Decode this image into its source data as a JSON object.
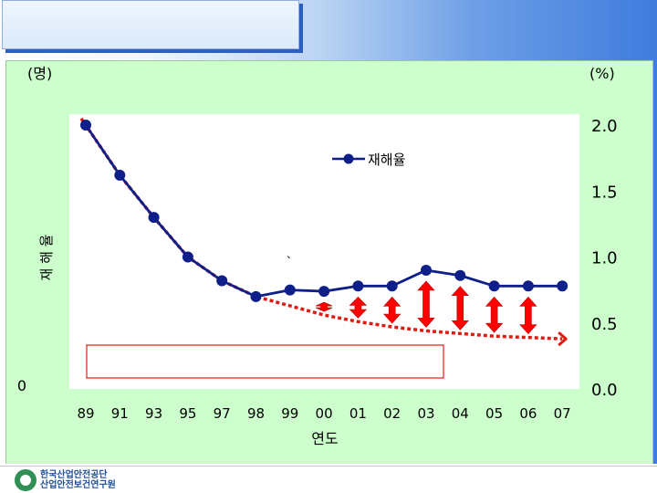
{
  "slide": {
    "title": "",
    "logo_text_line1": "한국산업안전공단",
    "logo_text_line2": "산업안전보건연구원"
  },
  "colors": {
    "series_line": "#0e1f8a",
    "trend": "#e21b12",
    "arrow": "#ff0000",
    "panel_bg": "#ccffcc",
    "plot_bg": "#ffffff"
  },
  "chart_data": {
    "type": "line",
    "categories": [
      "89",
      "91",
      "93",
      "95",
      "97",
      "98",
      "99",
      "00",
      "01",
      "02",
      "03",
      "04",
      "05",
      "06",
      "07"
    ],
    "series": [
      {
        "name": "재해율",
        "axis": "right",
        "values": [
          2.0,
          1.62,
          1.3,
          1.0,
          0.82,
          0.7,
          0.75,
          0.74,
          0.78,
          0.78,
          0.9,
          0.86,
          0.78,
          0.78,
          0.78
        ]
      }
    ],
    "trend": {
      "style": "dotted-red-arrow",
      "values": [
        2.05,
        1.62,
        1.3,
        1.0,
        0.82,
        0.7,
        0.63,
        0.56,
        0.51,
        0.47,
        0.44,
        0.42,
        0.4,
        0.39,
        0.38
      ]
    },
    "gap_arrows_categories": [
      "00",
      "01",
      "02",
      "03",
      "04",
      "05",
      "06"
    ],
    "xlabel": "연도",
    "ylabel_left": "재 해 율",
    "left_unit": "(명)",
    "left_tick_label": "0",
    "right_unit": "(%)",
    "y_right_ticks": [
      "0.0",
      "0.5",
      "1.0",
      "1.5",
      "2.0"
    ],
    "y_right_lim": [
      0,
      2.0
    ],
    "stray_mark": "`",
    "legend_position": "top-center",
    "grid": false
  }
}
